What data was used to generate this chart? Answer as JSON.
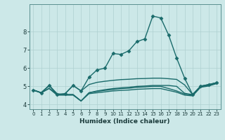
{
  "title": "",
  "xlabel": "Humidex (Indice chaleur)",
  "xlim": [
    -0.5,
    23.5
  ],
  "ylim": [
    3.75,
    9.5
  ],
  "xticks": [
    0,
    1,
    2,
    3,
    4,
    5,
    6,
    7,
    8,
    9,
    10,
    11,
    12,
    13,
    14,
    15,
    16,
    17,
    18,
    19,
    20,
    21,
    22,
    23
  ],
  "yticks": [
    4,
    5,
    6,
    7,
    8
  ],
  "bg_color": "#cce8e8",
  "line_color": "#1a6b6b",
  "grid_color": "#aed0d0",
  "lines": [
    {
      "x": [
        0,
        1,
        2,
        3,
        4,
        5,
        6,
        7,
        8,
        9,
        10,
        11,
        12,
        13,
        14,
        15,
        16,
        17,
        18,
        19,
        20,
        21,
        22,
        23
      ],
      "y": [
        4.8,
        4.65,
        5.05,
        4.55,
        4.6,
        5.05,
        4.75,
        5.5,
        5.9,
        6.0,
        6.8,
        6.75,
        6.95,
        7.45,
        7.6,
        8.85,
        8.75,
        7.8,
        6.55,
        5.45,
        4.55,
        5.0,
        5.1,
        5.2
      ],
      "marker": "D",
      "ms": 2.5,
      "lw": 1.0
    },
    {
      "x": [
        0,
        1,
        2,
        3,
        4,
        5,
        6,
        7,
        8,
        9,
        10,
        11,
        12,
        13,
        14,
        15,
        16,
        17,
        18,
        19,
        20,
        21,
        22,
        23
      ],
      "y": [
        4.8,
        4.65,
        5.05,
        4.6,
        4.55,
        4.55,
        4.2,
        4.65,
        4.75,
        4.82,
        4.88,
        4.92,
        4.95,
        5.0,
        5.02,
        5.05,
        5.05,
        5.05,
        5.0,
        4.62,
        4.55,
        5.0,
        5.08,
        5.2
      ],
      "marker": null,
      "ms": 0,
      "lw": 1.0
    },
    {
      "x": [
        0,
        1,
        2,
        3,
        4,
        5,
        6,
        7,
        8,
        9,
        10,
        11,
        12,
        13,
        14,
        15,
        16,
        17,
        18,
        19,
        20,
        21,
        22,
        23
      ],
      "y": [
        4.8,
        4.65,
        4.9,
        4.55,
        4.55,
        4.55,
        4.2,
        4.65,
        4.72,
        4.78,
        4.83,
        4.88,
        4.9,
        4.95,
        4.97,
        5.0,
        5.0,
        4.88,
        4.75,
        4.58,
        4.52,
        4.98,
        5.05,
        5.18
      ],
      "marker": null,
      "ms": 0,
      "lw": 1.0
    },
    {
      "x": [
        0,
        1,
        2,
        3,
        4,
        5,
        6,
        7,
        8,
        9,
        10,
        11,
        12,
        13,
        14,
        15,
        16,
        17,
        18,
        19,
        20,
        21,
        22,
        23
      ],
      "y": [
        4.8,
        4.65,
        5.05,
        4.55,
        4.6,
        5.05,
        4.75,
        5.1,
        5.22,
        5.28,
        5.33,
        5.37,
        5.39,
        5.42,
        5.43,
        5.45,
        5.45,
        5.42,
        5.38,
        5.08,
        4.55,
        5.02,
        5.1,
        5.2
      ],
      "marker": null,
      "ms": 0,
      "lw": 1.0
    },
    {
      "x": [
        0,
        1,
        2,
        3,
        4,
        5,
        6,
        7,
        8,
        9,
        10,
        11,
        12,
        13,
        14,
        15,
        16,
        17,
        18,
        19,
        20,
        21,
        22,
        23
      ],
      "y": [
        4.8,
        4.65,
        4.88,
        4.52,
        4.52,
        4.52,
        4.2,
        4.6,
        4.65,
        4.7,
        4.75,
        4.78,
        4.8,
        4.84,
        4.86,
        4.88,
        4.88,
        4.78,
        4.68,
        4.52,
        4.48,
        4.95,
        5.02,
        5.15
      ],
      "marker": null,
      "ms": 0,
      "lw": 1.0
    }
  ]
}
